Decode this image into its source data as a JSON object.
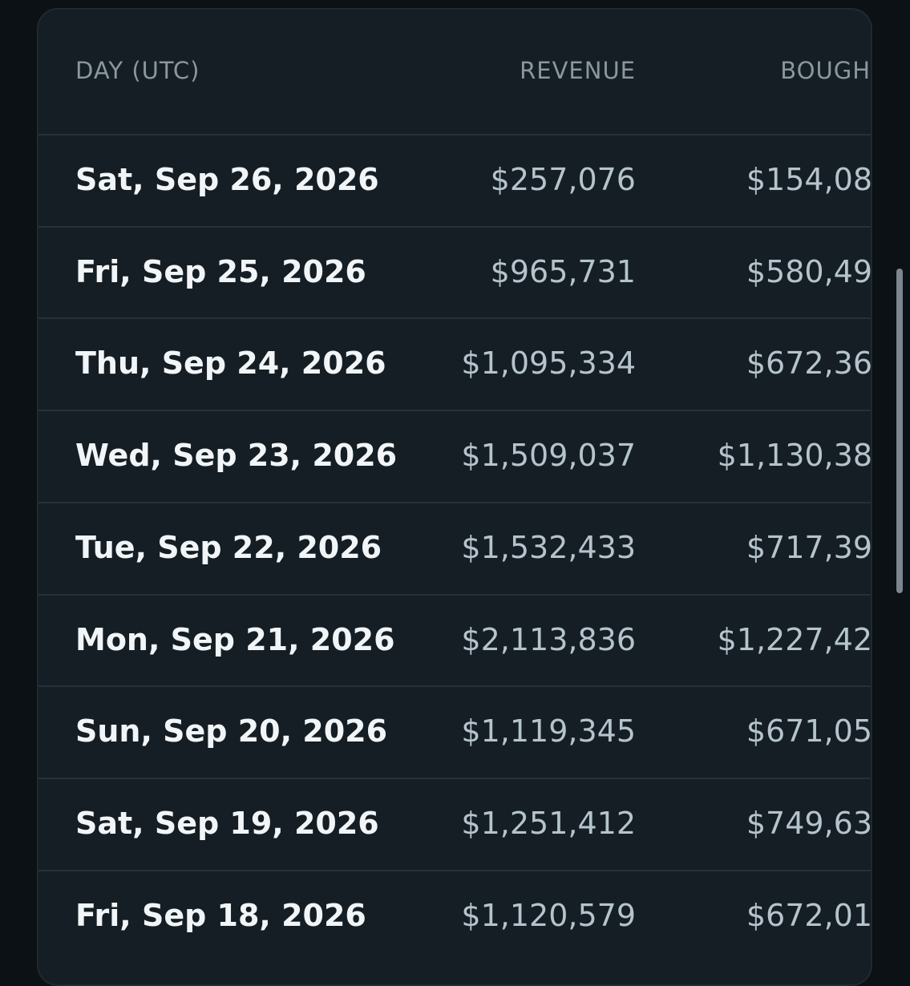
{
  "table": {
    "headers": [
      "DAY (UTC)",
      "REVENUE",
      "BOUGH"
    ],
    "rows": [
      [
        "Sat, Sep 26, 2026",
        "$257,076",
        "$154,08"
      ],
      [
        "Fri, Sep 25, 2026",
        "$965,731",
        "$580,49"
      ],
      [
        "Thu, Sep 24, 2026",
        "$1,095,334",
        "$672,36"
      ],
      [
        "Wed, Sep 23, 2026",
        "$1,509,037",
        "$1,130,38"
      ],
      [
        "Tue, Sep 22, 2026",
        "$1,532,433",
        "$717,39"
      ],
      [
        "Mon, Sep 21, 2026",
        "$2,113,836",
        "$1,227,42"
      ],
      [
        "Sun, Sep 20, 2026",
        "$1,119,345",
        "$671,05"
      ],
      [
        "Sat, Sep 19, 2026",
        "$1,251,412",
        "$749,63"
      ],
      [
        "Fri, Sep 18, 2026",
        "$1,120,579",
        "$672,01"
      ]
    ]
  }
}
